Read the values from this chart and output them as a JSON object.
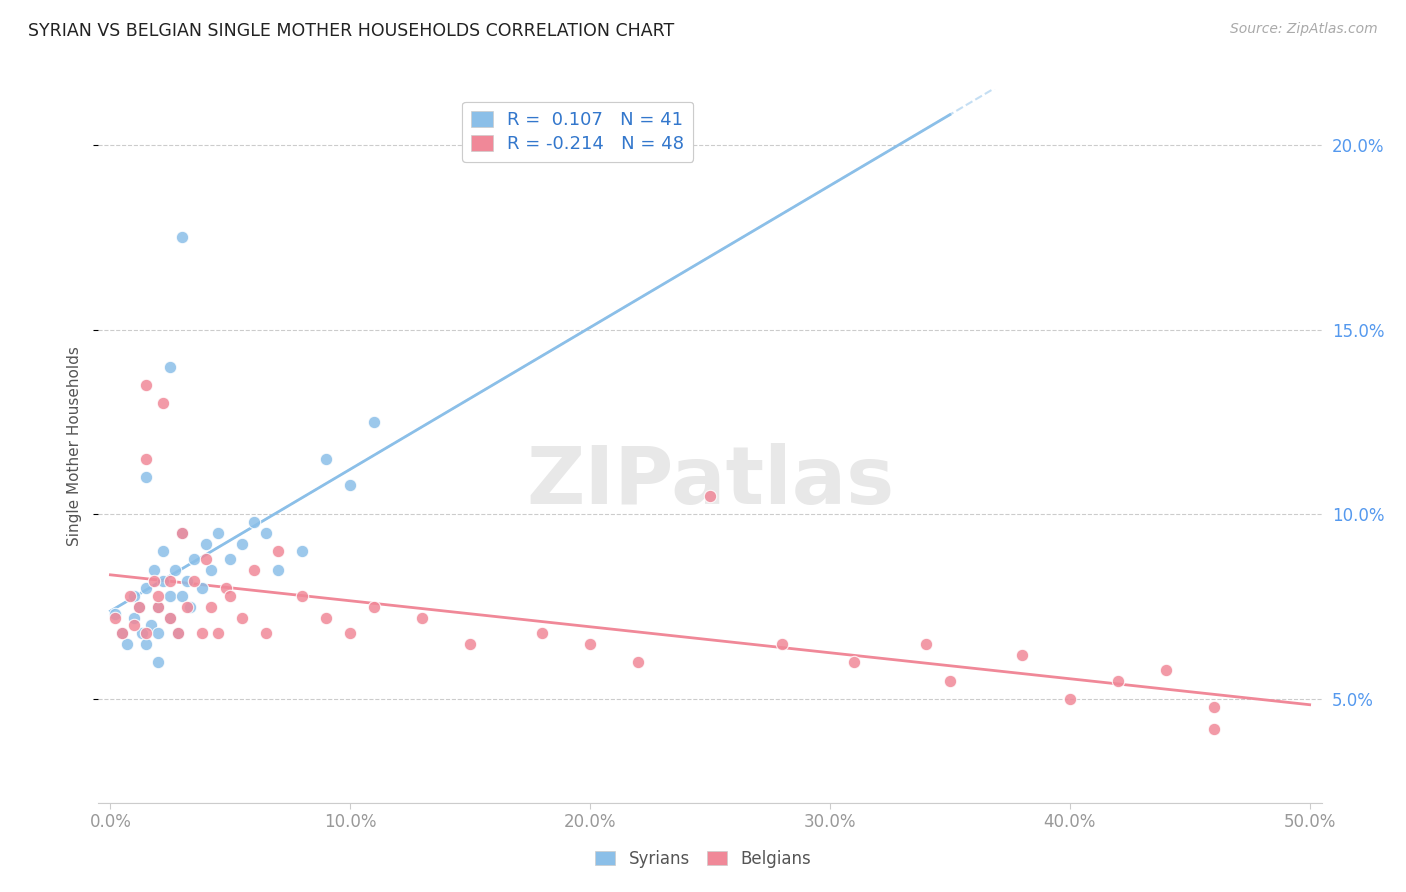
{
  "title": "SYRIAN VS BELGIAN SINGLE MOTHER HOUSEHOLDS CORRELATION CHART",
  "source": "Source: ZipAtlas.com",
  "ylabel": "Single Mother Households",
  "xlim": [
    -0.005,
    0.505
  ],
  "ylim": [
    0.022,
    0.215
  ],
  "xticks": [
    0.0,
    0.1,
    0.2,
    0.3,
    0.4,
    0.5
  ],
  "xticklabels": [
    "0.0%",
    "10.0%",
    "20.0%",
    "30.0%",
    "40.0%",
    "50.0%"
  ],
  "yticks_right": [
    0.05,
    0.1,
    0.15,
    0.2
  ],
  "yticklabels_right": [
    "5.0%",
    "10.0%",
    "15.0%",
    "20.0%"
  ],
  "syrian_color": "#8bbfe8",
  "belgian_color": "#f08898",
  "syrian_R": 0.107,
  "syrian_N": 41,
  "belgian_R": -0.214,
  "belgian_N": 48,
  "watermark": "ZIPatlas",
  "background_color": "#ffffff",
  "grid_color": "#cccccc",
  "legend_R_color": "#3377cc",
  "legend_N_color": "#3377cc",
  "right_tick_color": "#5599ee",
  "syrian_x": [
    0.002,
    0.005,
    0.007,
    0.01,
    0.01,
    0.012,
    0.013,
    0.015,
    0.015,
    0.017,
    0.018,
    0.02,
    0.02,
    0.022,
    0.022,
    0.025,
    0.025,
    0.027,
    0.028,
    0.03,
    0.03,
    0.032,
    0.033,
    0.035,
    0.038,
    0.04,
    0.042,
    0.045,
    0.05,
    0.055,
    0.06,
    0.065,
    0.07,
    0.08,
    0.09,
    0.1,
    0.11,
    0.025,
    0.03,
    0.015,
    0.02
  ],
  "syrian_y": [
    0.073,
    0.068,
    0.065,
    0.072,
    0.078,
    0.075,
    0.068,
    0.08,
    0.065,
    0.07,
    0.085,
    0.075,
    0.068,
    0.082,
    0.09,
    0.078,
    0.072,
    0.085,
    0.068,
    0.078,
    0.095,
    0.082,
    0.075,
    0.088,
    0.08,
    0.092,
    0.085,
    0.095,
    0.088,
    0.092,
    0.098,
    0.095,
    0.085,
    0.09,
    0.115,
    0.108,
    0.125,
    0.14,
    0.175,
    0.11,
    0.06
  ],
  "belgian_x": [
    0.002,
    0.005,
    0.008,
    0.01,
    0.012,
    0.015,
    0.015,
    0.018,
    0.02,
    0.022,
    0.025,
    0.028,
    0.03,
    0.032,
    0.035,
    0.038,
    0.04,
    0.042,
    0.045,
    0.048,
    0.05,
    0.055,
    0.06,
    0.065,
    0.07,
    0.08,
    0.09,
    0.1,
    0.11,
    0.13,
    0.15,
    0.18,
    0.2,
    0.22,
    0.25,
    0.28,
    0.31,
    0.34,
    0.35,
    0.38,
    0.4,
    0.42,
    0.44,
    0.46,
    0.015,
    0.02,
    0.025,
    0.46
  ],
  "belgian_y": [
    0.072,
    0.068,
    0.078,
    0.07,
    0.075,
    0.135,
    0.068,
    0.082,
    0.075,
    0.13,
    0.072,
    0.068,
    0.095,
    0.075,
    0.082,
    0.068,
    0.088,
    0.075,
    0.068,
    0.08,
    0.078,
    0.072,
    0.085,
    0.068,
    0.09,
    0.078,
    0.072,
    0.068,
    0.075,
    0.072,
    0.065,
    0.068,
    0.065,
    0.06,
    0.105,
    0.065,
    0.06,
    0.065,
    0.055,
    0.062,
    0.05,
    0.055,
    0.058,
    0.048,
    0.115,
    0.078,
    0.082,
    0.042
  ]
}
